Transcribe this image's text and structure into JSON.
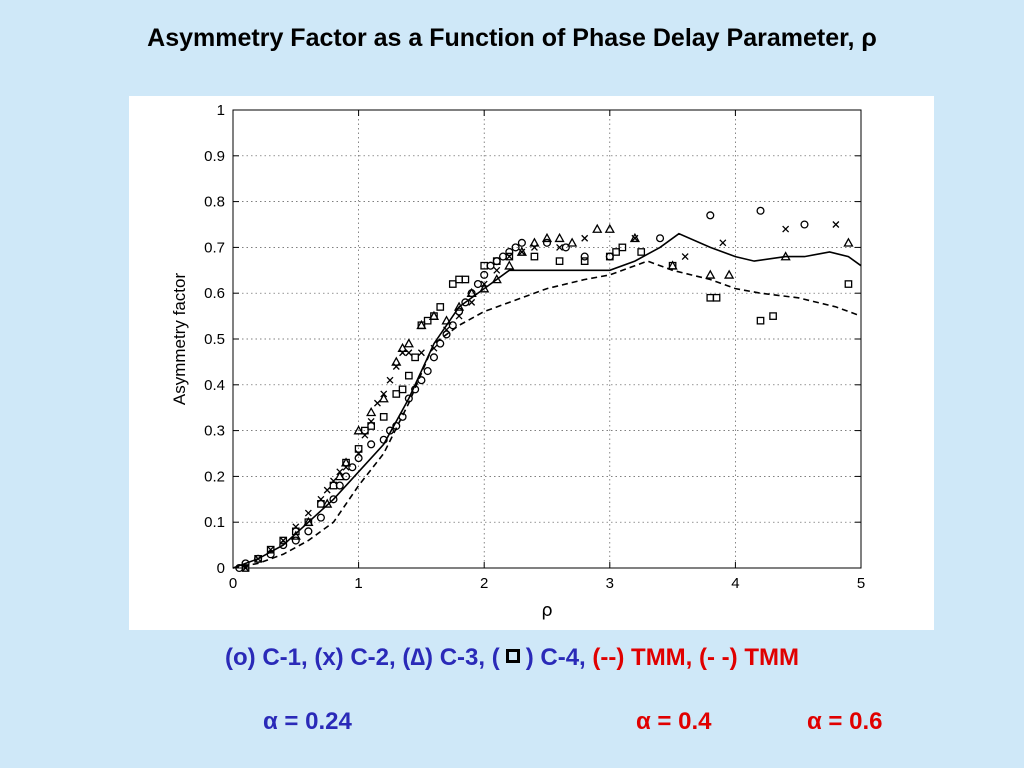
{
  "slide": {
    "title": "Asymmetry Factor as a Function of Phase Delay Parameter, ρ",
    "legend": {
      "c1": "(o) C-1,",
      "c2": "(x) C-2,",
      "c3": "(∆) C-3,",
      "c4_open": "(",
      "c4_close": ") C-4,",
      "tmm_solid_mark": "(--)",
      "tmm_solid": "TMM,",
      "tmm_dashed": "(- -) TMM"
    },
    "alphas": {
      "a1": "α = 0.24",
      "a2": "α = 0.4",
      "a3": "α = 0.6"
    },
    "colors": {
      "background": "#cfe8f8",
      "legend_blue": "#2a2ab8",
      "legend_red": "#e00000"
    }
  },
  "chart_data": {
    "type": "scatter",
    "xlabel": "ρ",
    "ylabel": "Asymmetry factor",
    "xlim": [
      0,
      5
    ],
    "ylim": [
      0,
      1
    ],
    "x_ticks": [
      "0",
      "1",
      "2",
      "3",
      "4",
      "5"
    ],
    "y_ticks": [
      "0",
      "0.1",
      "0.2",
      "0.3",
      "0.4",
      "0.5",
      "0.6",
      "0.7",
      "0.8",
      "0.9",
      "1"
    ],
    "grid": true,
    "scatter_series": [
      {
        "name": "C-1",
        "marker": "circle",
        "points": [
          [
            0.05,
            0.0
          ],
          [
            0.1,
            0.01
          ],
          [
            0.2,
            0.02
          ],
          [
            0.3,
            0.03
          ],
          [
            0.4,
            0.05
          ],
          [
            0.5,
            0.06
          ],
          [
            0.6,
            0.08
          ],
          [
            0.7,
            0.11
          ],
          [
            0.8,
            0.15
          ],
          [
            0.85,
            0.18
          ],
          [
            0.9,
            0.2
          ],
          [
            0.95,
            0.22
          ],
          [
            1.0,
            0.24
          ],
          [
            1.1,
            0.27
          ],
          [
            1.2,
            0.28
          ],
          [
            1.25,
            0.3
          ],
          [
            1.3,
            0.31
          ],
          [
            1.35,
            0.33
          ],
          [
            1.4,
            0.37
          ],
          [
            1.45,
            0.39
          ],
          [
            1.5,
            0.41
          ],
          [
            1.55,
            0.43
          ],
          [
            1.6,
            0.46
          ],
          [
            1.65,
            0.49
          ],
          [
            1.7,
            0.51
          ],
          [
            1.75,
            0.53
          ],
          [
            1.8,
            0.56
          ],
          [
            1.85,
            0.58
          ],
          [
            1.9,
            0.6
          ],
          [
            1.95,
            0.62
          ],
          [
            2.0,
            0.64
          ],
          [
            2.05,
            0.66
          ],
          [
            2.1,
            0.67
          ],
          [
            2.15,
            0.68
          ],
          [
            2.2,
            0.69
          ],
          [
            2.25,
            0.7
          ],
          [
            2.3,
            0.71
          ],
          [
            2.5,
            0.71
          ],
          [
            2.65,
            0.7
          ],
          [
            2.8,
            0.68
          ],
          [
            3.0,
            0.68
          ],
          [
            3.4,
            0.72
          ],
          [
            3.8,
            0.77
          ],
          [
            4.2,
            0.78
          ],
          [
            4.55,
            0.75
          ]
        ]
      },
      {
        "name": "C-2",
        "marker": "x",
        "points": [
          [
            0.1,
            0.0
          ],
          [
            0.2,
            0.02
          ],
          [
            0.3,
            0.04
          ],
          [
            0.4,
            0.06
          ],
          [
            0.5,
            0.09
          ],
          [
            0.6,
            0.12
          ],
          [
            0.7,
            0.15
          ],
          [
            0.75,
            0.17
          ],
          [
            0.8,
            0.19
          ],
          [
            0.85,
            0.21
          ],
          [
            0.9,
            0.22
          ],
          [
            1.0,
            0.25
          ],
          [
            1.05,
            0.29
          ],
          [
            1.1,
            0.32
          ],
          [
            1.15,
            0.36
          ],
          [
            1.2,
            0.38
          ],
          [
            1.25,
            0.41
          ],
          [
            1.3,
            0.44
          ],
          [
            1.35,
            0.47
          ],
          [
            1.4,
            0.47
          ],
          [
            1.5,
            0.47
          ],
          [
            1.6,
            0.48
          ],
          [
            1.7,
            0.52
          ],
          [
            1.8,
            0.55
          ],
          [
            1.9,
            0.58
          ],
          [
            2.0,
            0.62
          ],
          [
            2.1,
            0.65
          ],
          [
            2.2,
            0.68
          ],
          [
            2.3,
            0.69
          ],
          [
            2.4,
            0.7
          ],
          [
            2.6,
            0.7
          ],
          [
            2.8,
            0.72
          ],
          [
            3.2,
            0.72
          ],
          [
            3.6,
            0.68
          ],
          [
            3.9,
            0.71
          ],
          [
            4.4,
            0.74
          ],
          [
            4.8,
            0.75
          ]
        ]
      },
      {
        "name": "C-3",
        "marker": "triangle",
        "points": [
          [
            0.5,
            0.07
          ],
          [
            0.6,
            0.1
          ],
          [
            0.75,
            0.14
          ],
          [
            0.85,
            0.2
          ],
          [
            0.9,
            0.23
          ],
          [
            1.0,
            0.3
          ],
          [
            1.1,
            0.34
          ],
          [
            1.2,
            0.37
          ],
          [
            1.3,
            0.45
          ],
          [
            1.35,
            0.48
          ],
          [
            1.4,
            0.49
          ],
          [
            1.5,
            0.53
          ],
          [
            1.6,
            0.55
          ],
          [
            1.7,
            0.54
          ],
          [
            1.8,
            0.57
          ],
          [
            1.9,
            0.6
          ],
          [
            2.0,
            0.61
          ],
          [
            2.1,
            0.63
          ],
          [
            2.2,
            0.66
          ],
          [
            2.3,
            0.69
          ],
          [
            2.4,
            0.71
          ],
          [
            2.5,
            0.72
          ],
          [
            2.6,
            0.72
          ],
          [
            2.7,
            0.71
          ],
          [
            2.9,
            0.74
          ],
          [
            3.0,
            0.74
          ],
          [
            3.2,
            0.72
          ],
          [
            3.5,
            0.66
          ],
          [
            3.8,
            0.64
          ],
          [
            3.95,
            0.64
          ],
          [
            4.4,
            0.68
          ],
          [
            4.9,
            0.71
          ]
        ]
      },
      {
        "name": "C-4",
        "marker": "square",
        "points": [
          [
            0.1,
            0.0
          ],
          [
            0.2,
            0.02
          ],
          [
            0.3,
            0.04
          ],
          [
            0.4,
            0.06
          ],
          [
            0.5,
            0.08
          ],
          [
            0.6,
            0.1
          ],
          [
            0.7,
            0.14
          ],
          [
            0.8,
            0.18
          ],
          [
            0.9,
            0.23
          ],
          [
            1.0,
            0.26
          ],
          [
            1.05,
            0.3
          ],
          [
            1.1,
            0.31
          ],
          [
            1.2,
            0.33
          ],
          [
            1.3,
            0.38
          ],
          [
            1.35,
            0.39
          ],
          [
            1.4,
            0.42
          ],
          [
            1.45,
            0.46
          ],
          [
            1.5,
            0.53
          ],
          [
            1.55,
            0.54
          ],
          [
            1.6,
            0.55
          ],
          [
            1.65,
            0.57
          ],
          [
            1.75,
            0.62
          ],
          [
            1.8,
            0.63
          ],
          [
            1.85,
            0.63
          ],
          [
            2.0,
            0.66
          ],
          [
            2.1,
            0.67
          ],
          [
            2.2,
            0.68
          ],
          [
            2.4,
            0.68
          ],
          [
            2.6,
            0.67
          ],
          [
            2.8,
            0.67
          ],
          [
            3.0,
            0.68
          ],
          [
            3.05,
            0.69
          ],
          [
            3.1,
            0.7
          ],
          [
            3.25,
            0.69
          ],
          [
            3.5,
            0.66
          ],
          [
            3.8,
            0.59
          ],
          [
            3.85,
            0.59
          ],
          [
            4.2,
            0.54
          ],
          [
            4.3,
            0.55
          ],
          [
            4.9,
            0.62
          ]
        ]
      }
    ],
    "line_series": [
      {
        "name": "TMM α = 0.4",
        "style": "solid",
        "x": [
          0,
          0.2,
          0.4,
          0.6,
          0.8,
          1.0,
          1.2,
          1.4,
          1.6,
          1.8,
          2.0,
          2.2,
          2.4,
          2.6,
          2.8,
          3.0,
          3.2,
          3.4,
          3.55,
          3.8,
          4.0,
          4.15,
          4.4,
          4.55,
          4.75,
          4.9,
          5.0
        ],
        "y": [
          0,
          0.02,
          0.05,
          0.1,
          0.15,
          0.21,
          0.27,
          0.37,
          0.49,
          0.57,
          0.61,
          0.65,
          0.65,
          0.65,
          0.65,
          0.65,
          0.67,
          0.7,
          0.73,
          0.7,
          0.68,
          0.67,
          0.68,
          0.68,
          0.69,
          0.68,
          0.66
        ]
      },
      {
        "name": "TMM α = 0.6",
        "style": "dashed",
        "x": [
          0,
          0.2,
          0.4,
          0.6,
          0.8,
          1.0,
          1.2,
          1.4,
          1.6,
          1.8,
          2.0,
          2.2,
          2.5,
          2.8,
          3.0,
          3.2,
          3.3,
          3.5,
          3.8,
          4.0,
          4.2,
          4.5,
          4.8,
          5.0
        ],
        "y": [
          0,
          0.01,
          0.03,
          0.06,
          0.1,
          0.18,
          0.25,
          0.36,
          0.49,
          0.53,
          0.56,
          0.58,
          0.61,
          0.63,
          0.64,
          0.66,
          0.67,
          0.65,
          0.63,
          0.61,
          0.6,
          0.59,
          0.57,
          0.55
        ]
      }
    ]
  }
}
